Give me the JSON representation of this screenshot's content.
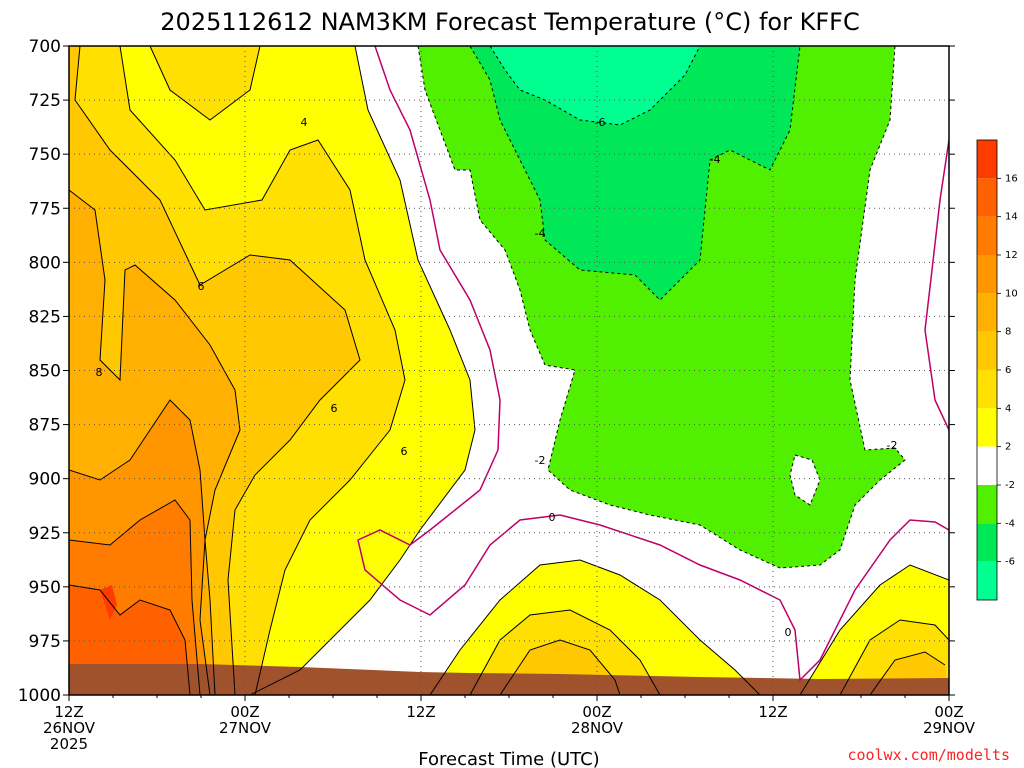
{
  "title": "2025112612 NAM3KM Forecast Temperature (°C) for KFFC",
  "credit": "coolwx.com/modelts",
  "chart_data": {
    "type": "heatmap",
    "title": "2025112612 NAM3KM Forecast Temperature (°C) for KFFC",
    "xlabel": "Forecast Time (UTC)",
    "ylabel": "",
    "x_ticks": [
      {
        "lines": [
          "12Z",
          "26NOV",
          "2025"
        ]
      },
      {
        "lines": [
          "00Z",
          "27NOV"
        ]
      },
      {
        "lines": [
          "12Z"
        ]
      },
      {
        "lines": [
          "00Z",
          "28NOV"
        ]
      },
      {
        "lines": [
          "12Z"
        ]
      },
      {
        "lines": [
          "00Z",
          "29NOV"
        ]
      }
    ],
    "y_ticks": [
      "700",
      "725",
      "750",
      "775",
      "800",
      "825",
      "850",
      "875",
      "900",
      "925",
      "950",
      "975",
      "1000"
    ],
    "x_range_hours": [
      0,
      60
    ],
    "y_range_hpa": [
      700,
      1000
    ],
    "y_reversed": true,
    "grid": true,
    "colorbar": {
      "ticks": [
        "16",
        "14",
        "12",
        "10",
        "8",
        "6",
        "4",
        "2",
        "-2",
        "-4",
        "-6"
      ],
      "bands": [
        {
          "range": [
            16,
            18
          ],
          "color": "#ff3c00"
        },
        {
          "range": [
            14,
            16
          ],
          "color": "#ff6000"
        },
        {
          "range": [
            12,
            14
          ],
          "color": "#ff7c00"
        },
        {
          "range": [
            10,
            12
          ],
          "color": "#ff9600"
        },
        {
          "range": [
            8,
            10
          ],
          "color": "#ffb000"
        },
        {
          "range": [
            6,
            8
          ],
          "color": "#ffc800"
        },
        {
          "range": [
            4,
            6
          ],
          "color": "#ffe000"
        },
        {
          "range": [
            2,
            4
          ],
          "color": "#ffff00"
        },
        {
          "range": [
            -2,
            2
          ],
          "color": "#ffffff"
        },
        {
          "range": [
            -4,
            -2
          ],
          "color": "#50f000"
        },
        {
          "range": [
            -6,
            -4
          ],
          "color": "#00e858"
        },
        {
          "range": [
            -8,
            -6
          ],
          "color": "#00ff90"
        }
      ]
    },
    "contour_labels": [
      "4",
      "6",
      "6",
      "8",
      "6",
      "-6",
      "-4",
      "-4",
      "-2",
      "-2",
      "0",
      "0"
    ]
  }
}
